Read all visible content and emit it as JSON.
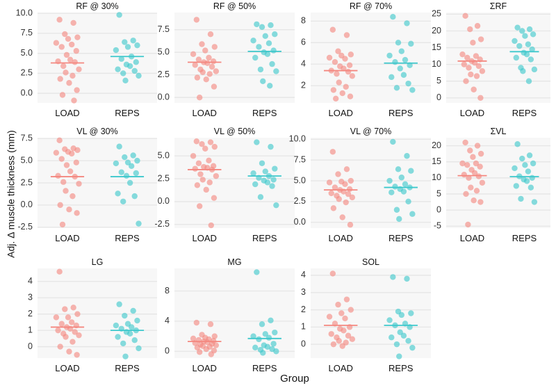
{
  "figure": {
    "ylabel": "Adj. Δ muscle thickness (mm)",
    "xlabel": "Group",
    "colors": {
      "LOAD": "#F4877F",
      "REPS": "#3DC8CC",
      "panel_bg": "#F7F7F7",
      "grid": "#E6E6E6"
    }
  },
  "chart_data": [
    {
      "type": "scatter",
      "title": "RF @ 30%",
      "categories": [
        "LOAD",
        "REPS"
      ],
      "ylim": [
        -1.2,
        10.1
      ],
      "yticks": [
        0.0,
        2.5,
        5.0,
        7.5,
        10.0
      ],
      "tick_labels": [
        "0.0",
        "2.5",
        "5.0",
        "7.5",
        "10.0"
      ],
      "series": [
        {
          "name": "LOAD",
          "mean": 3.8,
          "values": [
            9.2,
            8.8,
            7.4,
            7.0,
            6.8,
            6.3,
            6.1,
            5.8,
            5.3,
            4.8,
            4.2,
            4.0,
            3.9,
            3.4,
            3.0,
            2.6,
            2.2,
            1.8,
            1.3,
            0.4,
            -0.2,
            -0.9
          ]
        },
        {
          "name": "REPS",
          "mean": 4.6,
          "values": [
            9.8,
            6.6,
            6.4,
            6.0,
            5.8,
            5.4,
            4.6,
            4.3,
            3.9,
            3.6,
            3.4,
            3.0,
            2.8,
            2.5,
            2.2,
            1.6
          ]
        }
      ]
    },
    {
      "type": "scatter",
      "title": "RF @ 50%",
      "categories": [
        "LOAD",
        "REPS"
      ],
      "ylim": [
        -0.6,
        9.4
      ],
      "yticks": [
        0.0,
        2.5,
        5.0,
        7.5
      ],
      "tick_labels": [
        "0.0",
        "2.5",
        "5.0",
        "7.5"
      ],
      "series": [
        {
          "name": "LOAD",
          "mean": 3.9,
          "values": [
            8.6,
            7.0,
            5.9,
            5.6,
            5.2,
            4.8,
            4.4,
            4.2,
            4.0,
            3.9,
            3.8,
            3.6,
            3.4,
            3.1,
            2.9,
            2.8,
            2.6,
            2.2,
            2.0,
            1.2,
            0.0
          ]
        },
        {
          "name": "REPS",
          "mean": 5.1,
          "values": [
            8.1,
            8.0,
            7.8,
            7.0,
            6.8,
            6.3,
            6.0,
            5.6,
            5.2,
            5.0,
            4.8,
            4.4,
            3.7,
            3.1,
            2.9,
            1.8,
            1.3
          ]
        }
      ]
    },
    {
      "type": "scatter",
      "title": "RF @ 70%",
      "categories": [
        "LOAD",
        "REPS"
      ],
      "ylim": [
        0.4,
        8.8
      ],
      "yticks": [
        2,
        4,
        6,
        8
      ],
      "tick_labels": [
        "2",
        "4",
        "6",
        "8"
      ],
      "series": [
        {
          "name": "LOAD",
          "mean": 3.4,
          "values": [
            7.2,
            6.7,
            5.2,
            4.9,
            4.8,
            4.6,
            4.5,
            4.2,
            3.9,
            3.8,
            3.6,
            3.4,
            3.3,
            3.1,
            2.9,
            2.3,
            1.9,
            1.6,
            1.3,
            1.0,
            0.8
          ]
        },
        {
          "name": "REPS",
          "mean": 4.1,
          "values": [
            8.4,
            7.8,
            6.0,
            5.9,
            5.2,
            4.8,
            4.4,
            4.2,
            3.9,
            3.6,
            3.0,
            2.8,
            2.2,
            1.8,
            1.6
          ]
        }
      ]
    },
    {
      "type": "scatter",
      "title": "ΣRF",
      "categories": [
        "LOAD",
        "REPS"
      ],
      "ylim": [
        -1.5,
        25.5
      ],
      "yticks": [
        0,
        5,
        10,
        15,
        20,
        25
      ],
      "tick_labels": [
        "0",
        "5",
        "10",
        "15",
        "20",
        "25"
      ],
      "series": [
        {
          "name": "LOAD",
          "mean": 11.0,
          "values": [
            24.5,
            21.5,
            20.5,
            17.5,
            16.5,
            13.0,
            12.5,
            12.0,
            11.5,
            11.0,
            10.5,
            10.0,
            9.5,
            9.0,
            8.0,
            7.0,
            6.5,
            5.0,
            2.5,
            0.0
          ]
        },
        {
          "name": "REPS",
          "mean": 13.8,
          "values": [
            21.0,
            20.5,
            20.0,
            19.0,
            18.5,
            17.0,
            16.0,
            15.5,
            14.5,
            13.5,
            13.0,
            12.0,
            11.5,
            9.0,
            8.5,
            8.0,
            5.0
          ]
        }
      ]
    },
    {
      "type": "scatter",
      "title": "VL @ 30%",
      "categories": [
        "LOAD",
        "REPS"
      ],
      "ylim": [
        -2.6,
        7.6
      ],
      "yticks": [
        -2.5,
        0.0,
        2.5,
        5.0,
        7.5
      ],
      "tick_labels": [
        "-2.5",
        "0.0",
        "2.5",
        "5.0",
        "7.5"
      ],
      "series": [
        {
          "name": "LOAD",
          "mean": 3.2,
          "values": [
            7.3,
            6.4,
            6.3,
            6.2,
            6.0,
            5.9,
            5.8,
            5.2,
            4.8,
            4.5,
            3.8,
            3.3,
            3.2,
            2.6,
            2.4,
            1.6,
            1.0,
            0.0,
            -0.5,
            -0.9,
            -2.2
          ]
        },
        {
          "name": "REPS",
          "mean": 3.2,
          "values": [
            6.6,
            5.6,
            5.4,
            5.0,
            4.8,
            4.7,
            4.4,
            3.7,
            3.6,
            3.3,
            2.5,
            1.3,
            1.0,
            0.4,
            -2.1
          ]
        }
      ]
    },
    {
      "type": "scatter",
      "title": "VL @ 50%",
      "categories": [
        "LOAD",
        "REPS"
      ],
      "ylim": [
        -2.9,
        7.0
      ],
      "yticks": [
        -2.5,
        0.0,
        2.5,
        5.0
      ],
      "tick_labels": [
        "-2.5",
        "0.0",
        "2.5",
        "5.0"
      ],
      "series": [
        {
          "name": "LOAD",
          "mean": 3.5,
          "values": [
            6.6,
            6.5,
            6.3,
            6.0,
            5.8,
            5.0,
            4.5,
            4.2,
            3.9,
            3.8,
            3.7,
            3.6,
            3.5,
            3.0,
            2.8,
            2.4,
            2.1,
            1.8,
            1.3,
            0.4,
            -0.5,
            -2.6
          ]
        },
        {
          "name": "REPS",
          "mean": 2.8,
          "values": [
            6.5,
            6.0,
            4.2,
            3.6,
            3.3,
            3.1,
            2.8,
            2.6,
            2.4,
            2.3,
            2.1,
            1.9,
            1.7,
            0.5,
            -0.4
          ]
        }
      ]
    },
    {
      "type": "scatter",
      "title": "VL @ 70%",
      "categories": [
        "LOAD",
        "REPS"
      ],
      "ylim": [
        -0.7,
        10.2
      ],
      "yticks": [
        0.0,
        2.5,
        5.0,
        7.5,
        10.0
      ],
      "tick_labels": [
        "0.0",
        "2.5",
        "5.0",
        "7.5",
        "10.0"
      ],
      "series": [
        {
          "name": "LOAD",
          "mean": 3.9,
          "values": [
            8.5,
            6.4,
            5.8,
            5.0,
            4.9,
            4.8,
            4.6,
            4.2,
            4.0,
            3.9,
            3.7,
            3.5,
            3.4,
            3.2,
            3.0,
            2.8,
            2.4,
            1.7,
            0.6,
            -0.3
          ]
        },
        {
          "name": "REPS",
          "mean": 4.2,
          "values": [
            9.7,
            8.0,
            6.4,
            6.2,
            5.4,
            5.0,
            4.6,
            4.3,
            4.2,
            4.0,
            3.7,
            3.6,
            2.5,
            1.5,
            1.0,
            0.4
          ]
        }
      ]
    },
    {
      "type": "scatter",
      "title": "ΣVL",
      "categories": [
        "LOAD",
        "REPS"
      ],
      "ylim": [
        -5.6,
        22.5
      ],
      "yticks": [
        -5,
        0,
        5,
        10,
        15,
        20
      ],
      "tick_labels": [
        "-5",
        "0",
        "5",
        "10",
        "15",
        "20"
      ],
      "series": [
        {
          "name": "LOAD",
          "mean": 10.7,
          "values": [
            21.0,
            20.0,
            18.5,
            17.5,
            16.5,
            14.5,
            14.5,
            14.0,
            13.5,
            12.5,
            11.5,
            11.0,
            10.5,
            10.0,
            8.5,
            7.0,
            6.0,
            5.0,
            3.0,
            2.5,
            -4.5
          ]
        },
        {
          "name": "REPS",
          "mean": 10.4,
          "values": [
            20.5,
            17.0,
            16.0,
            14.5,
            14.0,
            13.0,
            12.0,
            10.5,
            10.0,
            9.5,
            9.0,
            7.5,
            7.0,
            3.5,
            2.5
          ]
        }
      ]
    },
    {
      "type": "scatter",
      "title": "LG",
      "categories": [
        "LOAD",
        "REPS"
      ],
      "ylim": [
        -0.7,
        4.8
      ],
      "yticks": [
        0,
        1,
        2,
        3,
        4
      ],
      "tick_labels": [
        "0",
        "1",
        "2",
        "3",
        "4"
      ],
      "series": [
        {
          "name": "LOAD",
          "mean": 1.2,
          "values": [
            4.6,
            2.4,
            2.3,
            2.0,
            1.8,
            1.8,
            1.5,
            1.4,
            1.3,
            1.2,
            1.1,
            1.0,
            0.9,
            0.8,
            0.7,
            0.6,
            0.3,
            0.0,
            -0.3,
            -0.5
          ]
        },
        {
          "name": "REPS",
          "mean": 1.0,
          "values": [
            2.6,
            2.2,
            1.9,
            1.6,
            1.4,
            1.3,
            1.2,
            1.1,
            1.0,
            0.9,
            0.8,
            0.6,
            0.4,
            0.2,
            -0.1,
            -0.6
          ]
        }
      ]
    },
    {
      "type": "scatter",
      "title": "MG",
      "categories": [
        "LOAD",
        "REPS"
      ],
      "ylim": [
        -0.9,
        11.0
      ],
      "yticks": [
        0,
        4,
        8
      ],
      "tick_labels": [
        "0",
        "4",
        "8"
      ],
      "series": [
        {
          "name": "LOAD",
          "mean": 1.3,
          "values": [
            3.8,
            3.6,
            2.2,
            2.0,
            1.8,
            1.7,
            1.6,
            1.5,
            1.4,
            1.3,
            1.2,
            1.1,
            1.0,
            0.9,
            0.8,
            0.7,
            0.6,
            0.5,
            0.3,
            0.1,
            -0.1,
            -0.4
          ]
        },
        {
          "name": "REPS",
          "mean": 1.7,
          "values": [
            10.5,
            4.1,
            3.6,
            2.5,
            2.3,
            2.0,
            1.8,
            1.6,
            1.0,
            0.8,
            0.6,
            0.5,
            0.3,
            0.2,
            0.0,
            -0.2
          ]
        }
      ]
    },
    {
      "type": "scatter",
      "title": "SOL",
      "categories": [
        "LOAD",
        "REPS"
      ],
      "ylim": [
        -0.8,
        4.4
      ],
      "yticks": [
        0,
        1,
        2,
        3,
        4
      ],
      "tick_labels": [
        "0",
        "1",
        "2",
        "3",
        "4"
      ],
      "series": [
        {
          "name": "LOAD",
          "mean": 1.1,
          "values": [
            4.1,
            2.6,
            2.3,
            2.0,
            1.8,
            1.6,
            1.5,
            1.2,
            1.0,
            0.9,
            0.8,
            0.6,
            0.5,
            0.4,
            0.3,
            0.2,
            0.1,
            0.0,
            -0.1
          ]
        },
        {
          "name": "REPS",
          "mean": 1.1,
          "values": [
            3.9,
            3.8,
            1.9,
            1.8,
            1.7,
            1.4,
            1.2,
            1.1,
            1.0,
            0.7,
            0.5,
            0.4,
            0.2,
            0.0,
            -0.2,
            -0.7
          ]
        }
      ]
    }
  ]
}
